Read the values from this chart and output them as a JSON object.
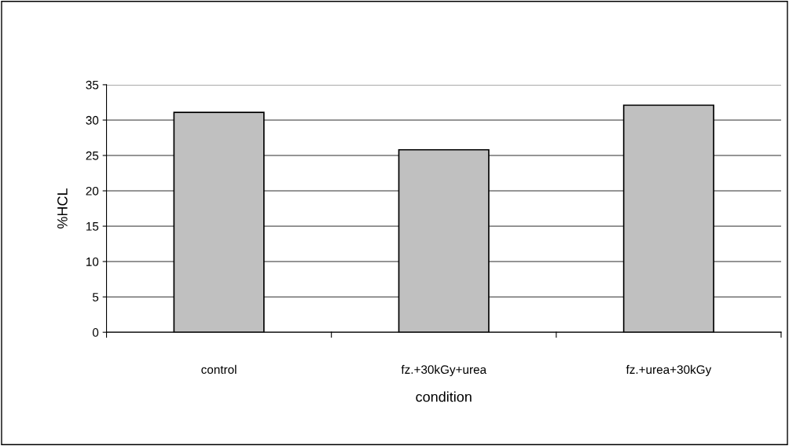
{
  "chart_data": {
    "type": "bar",
    "xlabel": "condition",
    "ylabel": "%HCL",
    "categories": [
      "control",
      "fz.+30kGy+urea",
      "fz.+urea+30kGy"
    ],
    "values": [
      31.1,
      25.8,
      32.1
    ],
    "color": "#c0c0c0",
    "ylim": [
      0,
      35
    ],
    "yticks": [
      0,
      5,
      10,
      15,
      20,
      25,
      30,
      35
    ],
    "grid": "y",
    "legend": false
  }
}
